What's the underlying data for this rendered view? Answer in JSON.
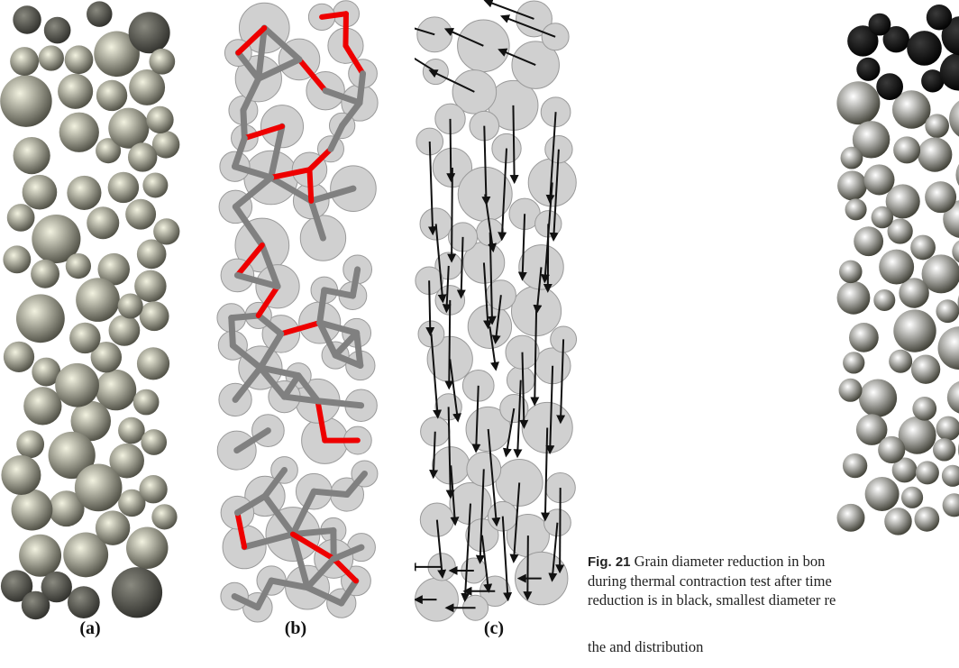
{
  "figure": {
    "panels": [
      {
        "id": "a",
        "label": "(a)"
      },
      {
        "id": "b",
        "label": "(b)"
      },
      {
        "id": "c",
        "label": "(c)"
      }
    ],
    "colors": {
      "grain_light": "#f2f2e0",
      "grain_dark": "#4a4a40",
      "grain_outline": "#9a9a9a",
      "grain_fill_flat": "#d0d0d0",
      "force_chain_tension": "#ee0000",
      "force_chain_compression": "#808080",
      "velocity_arrow": "#111111",
      "reduced_grain": "#111111"
    }
  },
  "caption": {
    "fig_label": "Fig. 21",
    "line1": " Grain diameter reduction in bon",
    "line2": "during thermal contraction test after time",
    "line3": "reduction is in black, smallest diameter re"
  },
  "body_text": "the  and                        distribution"
}
